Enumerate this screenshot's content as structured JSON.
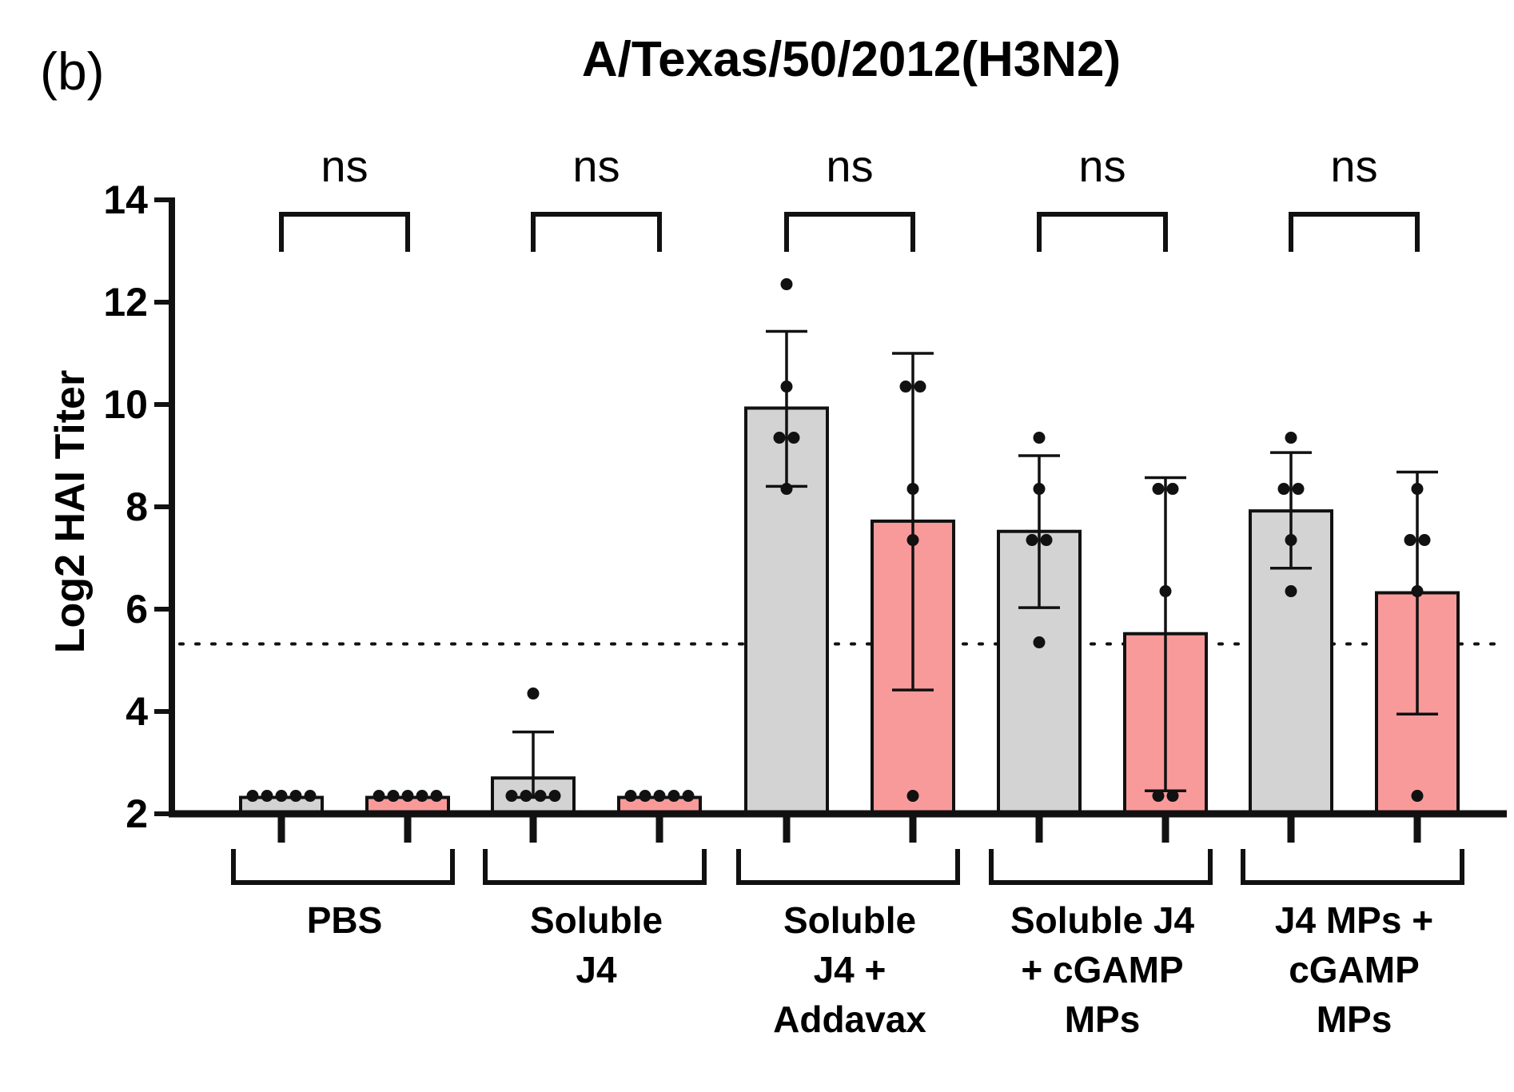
{
  "panel_label": "(b)",
  "chart_data": {
    "type": "bar",
    "title": "A/Texas/50/2012(H3N2)",
    "ylabel": "Log2 HAI Titer",
    "xlabel": "",
    "ylim": [
      2,
      14
    ],
    "yticks": [
      2,
      4,
      6,
      8,
      10,
      12,
      14
    ],
    "reference_line": 5.32,
    "colors": {
      "series_a": "#d3d3d3",
      "series_b": "#f99a9a",
      "axis": "#000000"
    },
    "groups": [
      {
        "label_lines": [
          "PBS"
        ],
        "significance": "ns"
      },
      {
        "label_lines": [
          "Soluble",
          "J4"
        ],
        "significance": "ns"
      },
      {
        "label_lines": [
          "Soluble",
          "J4 +",
          "Addavax"
        ],
        "significance": "ns"
      },
      {
        "label_lines": [
          "Soluble J4",
          "+ cGAMP",
          "MPs"
        ],
        "significance": "ns"
      },
      {
        "label_lines": [
          "J4 MPs +",
          "cGAMP",
          "MPs"
        ],
        "significance": "ns"
      }
    ],
    "series": [
      {
        "values": [
          2.32,
          2.7,
          9.93,
          7.52,
          7.92
        ],
        "error_low": [
          2.32,
          2.32,
          8.4,
          6.03,
          6.8
        ],
        "error_high": [
          2.32,
          3.6,
          11.43,
          9.0,
          9.06
        ],
        "points": [
          [
            2.32,
            2.32,
            2.32,
            2.32,
            2.32
          ],
          [
            2.32,
            2.32,
            2.32,
            2.32,
            4.32
          ],
          [
            12.32,
            10.32,
            9.32,
            9.32,
            8.32
          ],
          [
            9.32,
            8.32,
            7.32,
            7.32,
            5.32
          ],
          [
            9.32,
            8.32,
            8.32,
            7.32,
            6.32
          ]
        ]
      },
      {
        "values": [
          2.32,
          2.32,
          7.72,
          5.52,
          6.32
        ],
        "error_low": [
          2.32,
          2.32,
          4.42,
          2.45,
          3.95
        ],
        "error_high": [
          2.32,
          2.32,
          11.0,
          8.57,
          8.68
        ],
        "points": [
          [
            2.32,
            2.32,
            2.32,
            2.32,
            2.32
          ],
          [
            2.32,
            2.32,
            2.32,
            2.32,
            2.32
          ],
          [
            10.32,
            10.32,
            8.32,
            7.32,
            2.32
          ],
          [
            8.32,
            8.32,
            6.32,
            2.32,
            2.32
          ],
          [
            8.32,
            7.32,
            7.32,
            6.32,
            2.32
          ]
        ]
      }
    ]
  }
}
